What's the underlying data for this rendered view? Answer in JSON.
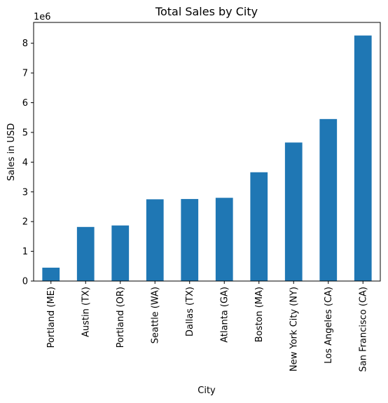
{
  "chart_data": {
    "type": "bar",
    "title": "Total Sales by City",
    "xlabel": "City",
    "ylabel": "Sales in USD",
    "y_offset_label": "1e6",
    "categories": [
      "Portland (ME)",
      "Austin (TX)",
      "Portland (OR)",
      "Seattle (WA)",
      "Dallas (TX)",
      "Atlanta (GA)",
      "Boston (MA)",
      "New York City (NY)",
      "Los Angeles (CA)",
      "San Francisco (CA)"
    ],
    "values": [
      0.45,
      1.82,
      1.87,
      2.75,
      2.76,
      2.8,
      3.66,
      4.66,
      5.45,
      8.26
    ],
    "ylim": [
      0,
      8.7
    ],
    "yticks": [
      0,
      1,
      2,
      3,
      4,
      5,
      6,
      7,
      8
    ],
    "bar_color": "#1f77b4",
    "grid": false,
    "legend": "none"
  }
}
